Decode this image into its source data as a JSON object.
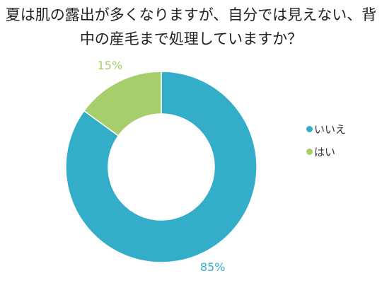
{
  "chart_data": {
    "type": "pie",
    "title": "夏は肌の露出が多くなりますが、自分では見えない、背中の産毛まで処理していますか？",
    "categories": [
      "いいえ",
      "はい"
    ],
    "values": [
      85,
      15
    ],
    "value_labels": [
      "85%",
      "15%"
    ],
    "colors": [
      "#34adc8",
      "#a6ce6a"
    ],
    "donut": true,
    "legend_position": "right"
  }
}
